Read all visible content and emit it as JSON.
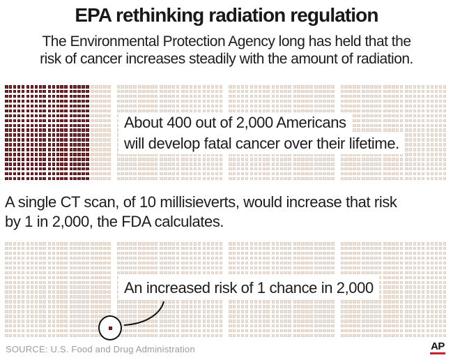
{
  "colors": {
    "dark_square": "#7c2629",
    "dark_square_border": "#551114",
    "light_square": "#ebe1d8",
    "light_square_border": "#dfd1c5",
    "ap_red": "#c4252c",
    "text": "#1b1b1b",
    "source_text": "#9b9b9b"
  },
  "header": {
    "title": "EPA rethinking radiation regulation",
    "subtitle_line1": "The Environmental Protection Agency long has held that the",
    "subtitle_line2": "risk of cancer increases steadily with the amount of radiation."
  },
  "chart_data": [
    {
      "type": "waffle",
      "title": "Baseline lifetime fatal cancer risk",
      "total_squares": 2000,
      "highlighted_squares": 400,
      "rows": 20,
      "columns": 100,
      "blocks": 4,
      "columns_per_block": 25,
      "highlighted_columns": 20,
      "annotation": "About 400 out of 2,000 Americans will develop fatal cancer over their lifetime."
    },
    {
      "type": "waffle",
      "title": "Added risk from a single 10-millisievert CT scan",
      "total_squares": 2000,
      "highlighted_squares": 1,
      "rows": 20,
      "columns": 100,
      "blocks": 4,
      "columns_per_block": 25,
      "highlighted_columns": 0,
      "annotation": "An increased risk of 1 chance in 2,000"
    }
  ],
  "grid1_label": {
    "line1": "About 400 out of 2,000 Americans",
    "line2": "will develop fatal cancer over their lifetime."
  },
  "middle_text": {
    "line1": "A single CT scan, of 10 millisieverts, would increase that risk",
    "line2": "by 1 in 2,000, the FDA calculates."
  },
  "annotation": {
    "text": "An increased risk of 1 chance in 2,000"
  },
  "footer": {
    "source": "SOURCE: U.S. Food and Drug Administration",
    "logo": "AP"
  }
}
